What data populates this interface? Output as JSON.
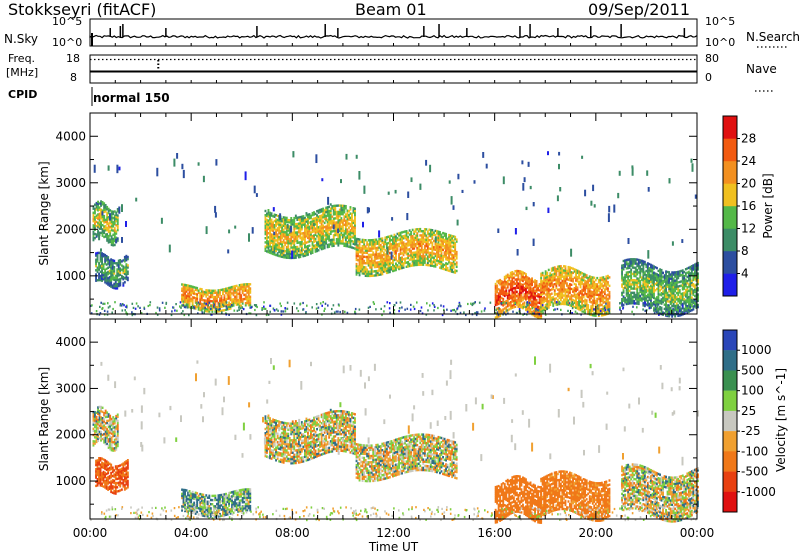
{
  "header": {
    "station": "Stokkseyri (fitACF)",
    "beam": "Beam 01",
    "date": "09/Sep/2011"
  },
  "top_panels": {
    "nsky": {
      "left_label": "N.Sky",
      "right_label": "N.Search",
      "left_ticks": [
        "10^5",
        "10^0"
      ],
      "right_ticks": [
        "10^5",
        "10^0"
      ]
    },
    "freq": {
      "left_label_line1": "Freq.",
      "left_label_line2": "[MHz]",
      "right_label": "Nave",
      "left_ticks": [
        "18",
        "8"
      ],
      "right_ticks": [
        "80",
        "0"
      ]
    },
    "cpid": {
      "label": "CPID",
      "program": "normal 150"
    }
  },
  "colors": {
    "power": [
      "#1f1fe8",
      "#2c4ea0",
      "#3c8c66",
      "#54b848",
      "#f0c020",
      "#f39020",
      "#f25a10",
      "#e01010"
    ],
    "velocity": [
      "#2a46b8",
      "#2f6e88",
      "#3a9050",
      "#7fd040",
      "#c8c8c0",
      "#f0a030",
      "#f07818",
      "#e84010",
      "#e01010"
    ]
  },
  "chart_data": [
    {
      "type": "heatmap",
      "quantity": "Power",
      "x": {
        "label": "Time UT",
        "range": [
          "00:00",
          "24:00"
        ],
        "ticks": [
          "00:00",
          "04:00",
          "08:00",
          "12:00",
          "16:00",
          "20:00",
          "00:00"
        ]
      },
      "y": {
        "label": "Slant Range [km]",
        "range": [
          180,
          4500
        ],
        "ticks": [
          1000,
          2000,
          3000,
          4000
        ]
      },
      "colorbar": {
        "label": "Power [dB]",
        "range": [
          0,
          30
        ],
        "ticks": [
          4,
          8,
          12,
          16,
          20,
          24,
          28
        ]
      },
      "echo_regions": [
        {
          "t_start": 0.1,
          "t_end": 1.1,
          "range_low": 1750,
          "range_high": 2500,
          "power_db": 16
        },
        {
          "t_start": 0.2,
          "t_end": 1.5,
          "range_low": 800,
          "range_high": 1400,
          "power_db": 12
        },
        {
          "t_start": 3.6,
          "t_end": 6.3,
          "range_low": 280,
          "range_high": 750,
          "power_db": 22
        },
        {
          "t_start": 6.9,
          "t_end": 10.5,
          "range_low": 1500,
          "range_high": 2400,
          "power_db": 18
        },
        {
          "t_start": 10.5,
          "t_end": 14.5,
          "range_low": 1100,
          "range_high": 1900,
          "power_db": 20
        },
        {
          "t_start": 16.0,
          "t_end": 17.8,
          "range_low": 200,
          "range_high": 1000,
          "power_db": 26
        },
        {
          "t_start": 17.8,
          "t_end": 20.5,
          "range_low": 250,
          "range_high": 1100,
          "power_db": 22
        },
        {
          "t_start": 21.0,
          "t_end": 24.0,
          "range_low": 250,
          "range_high": 1200,
          "power_db": 14
        }
      ]
    },
    {
      "type": "heatmap",
      "quantity": "Velocity",
      "x": {
        "label": "Time UT",
        "range": [
          "00:00",
          "24:00"
        ],
        "ticks": [
          "00:00",
          "04:00",
          "08:00",
          "12:00",
          "16:00",
          "20:00",
          "00:00"
        ]
      },
      "y": {
        "label": "Slant Range [km]",
        "range": [
          180,
          4500
        ],
        "ticks": [
          1000,
          2000,
          3000,
          4000
        ]
      },
      "colorbar": {
        "label": "Velocity [m s^-1]",
        "ticks": [
          "1000",
          "500",
          "100",
          "25",
          "-25",
          "-100",
          "-500",
          "-1000"
        ]
      },
      "echo_regions": [
        {
          "t_start": 0.1,
          "t_end": 1.1,
          "range_low": 1750,
          "range_high": 2500,
          "velocity": 0
        },
        {
          "t_start": 0.2,
          "t_end": 1.5,
          "range_low": 800,
          "range_high": 1400,
          "velocity": -500
        },
        {
          "t_start": 3.6,
          "t_end": 6.3,
          "range_low": 280,
          "range_high": 750,
          "velocity": 100
        },
        {
          "t_start": 6.9,
          "t_end": 10.5,
          "range_low": 1500,
          "range_high": 2400,
          "velocity": 0
        },
        {
          "t_start": 10.5,
          "t_end": 14.5,
          "range_low": 1100,
          "range_high": 1900,
          "velocity": 0
        },
        {
          "t_start": 16.0,
          "t_end": 17.8,
          "range_low": 200,
          "range_high": 1000,
          "velocity": -300
        },
        {
          "t_start": 17.8,
          "t_end": 20.5,
          "range_low": 250,
          "range_high": 1100,
          "velocity": -200
        },
        {
          "t_start": 21.0,
          "t_end": 24.0,
          "range_low": 250,
          "range_high": 1200,
          "velocity": 0
        }
      ]
    }
  ]
}
